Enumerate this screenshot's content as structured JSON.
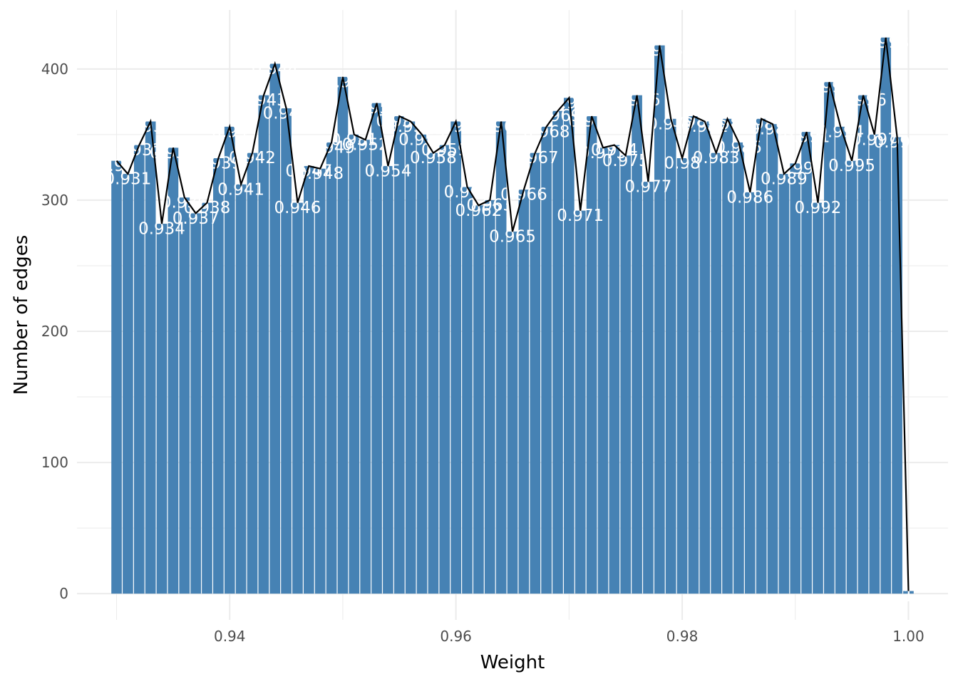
{
  "chart_data": {
    "type": "bar",
    "xlabel": "Weight",
    "ylabel": "Number of edges",
    "xlim": [
      0.9265,
      1.0035
    ],
    "ylim": [
      -20,
      445
    ],
    "x_ticks": [
      0.94,
      0.96,
      0.98,
      1.0
    ],
    "x_tick_labels": [
      "0.94",
      "0.96",
      "0.98",
      "1.00"
    ],
    "y_ticks": [
      0,
      100,
      200,
      300,
      400
    ],
    "y_tick_labels": [
      "0",
      "100",
      "200",
      "300",
      "400"
    ],
    "grid": true,
    "legend": "none",
    "bar_color": "#4682b4",
    "line_color": "#000000",
    "x": [
      0.93,
      0.931,
      0.932,
      0.933,
      0.934,
      0.935,
      0.936,
      0.937,
      0.938,
      0.939,
      0.94,
      0.941,
      0.942,
      0.943,
      0.944,
      0.945,
      0.946,
      0.947,
      0.948,
      0.949,
      0.95,
      0.951,
      0.952,
      0.953,
      0.954,
      0.955,
      0.956,
      0.957,
      0.958,
      0.959,
      0.96,
      0.961,
      0.962,
      0.963,
      0.964,
      0.965,
      0.966,
      0.967,
      0.968,
      0.969,
      0.97,
      0.971,
      0.972,
      0.973,
      0.974,
      0.975,
      0.976,
      0.977,
      0.978,
      0.979,
      0.98,
      0.981,
      0.982,
      0.983,
      0.984,
      0.985,
      0.986,
      0.987,
      0.988,
      0.989,
      0.99,
      0.991,
      0.992,
      0.993,
      0.994,
      0.995,
      0.996,
      0.997,
      0.998,
      0.999,
      1.0
    ],
    "values": [
      330,
      320,
      342,
      360,
      282,
      340,
      302,
      290,
      298,
      332,
      356,
      312,
      336,
      380,
      404,
      370,
      298,
      326,
      324,
      344,
      394,
      350,
      346,
      374,
      326,
      364,
      360,
      350,
      336,
      342,
      360,
      310,
      296,
      300,
      360,
      276,
      308,
      336,
      356,
      368,
      378,
      292,
      364,
      340,
      342,
      334,
      380,
      314,
      418,
      362,
      332,
      364,
      360,
      336,
      362,
      344,
      306,
      362,
      358,
      320,
      328,
      352,
      298,
      390,
      356,
      330,
      380,
      350,
      424,
      348,
      2
    ],
    "labels": [
      "0.93",
      "0.931",
      "0.932",
      "0.933",
      "0.934",
      "0.935",
      "0.936",
      "0.937",
      "0.938",
      "0.939",
      "0.94",
      "0.941",
      "0.942",
      "0.943",
      "0.944",
      "0.945",
      "0.946",
      "0.947",
      "0.948",
      "0.949",
      "0.95",
      "0.951",
      "0.952",
      "0.953",
      "0.954",
      "0.955",
      "0.956",
      "0.957",
      "0.958",
      "0.959",
      "0.96",
      "0.961",
      "0.962",
      "0.963",
      "0.964",
      "0.965",
      "0.966",
      "0.967",
      "0.968",
      "0.969",
      "0.97",
      "0.971",
      "0.972",
      "0.973",
      "0.974",
      "0.975",
      "0.976",
      "0.977",
      "0.978",
      "0.979",
      "0.98",
      "0.981",
      "0.982",
      "0.983",
      "0.984",
      "0.985",
      "0.986",
      "0.987",
      "0.988",
      "0.989",
      "0.99",
      "0.991",
      "0.992",
      "0.993",
      "0.994",
      "0.995",
      "0.996",
      "0.997",
      "0.998",
      "0.999",
      "1"
    ]
  }
}
